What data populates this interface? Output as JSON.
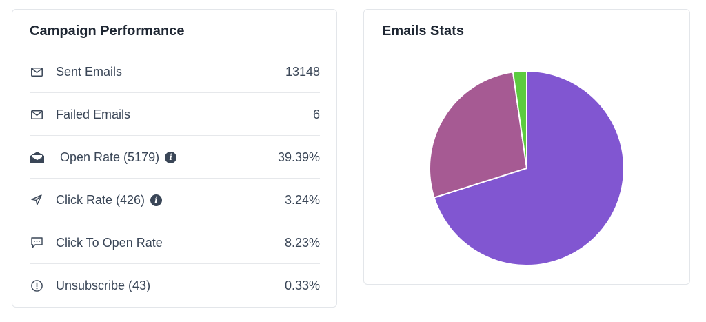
{
  "campaign": {
    "title": "Campaign Performance",
    "rows": [
      {
        "label": "Sent Emails",
        "value": "13148",
        "icon": "envelope-icon"
      },
      {
        "label": "Failed Emails",
        "value": "6",
        "icon": "envelope-icon"
      },
      {
        "label": "Open Rate (5179)",
        "value": "39.39%",
        "icon": "open-envelope-icon",
        "info_glyph": "i"
      },
      {
        "label": "Click Rate (426)",
        "value": "3.24%",
        "icon": "paper-plane-icon",
        "info_glyph": "i"
      },
      {
        "label": "Click To Open Rate",
        "value": "8.23%",
        "icon": "chat-bubble-icon"
      },
      {
        "label": "Unsubscribe (43)",
        "value": "0.33%",
        "icon": "alert-circle-icon"
      }
    ]
  },
  "stats": {
    "title": "Emails Stats"
  },
  "chart_data": {
    "type": "pie",
    "title": "Emails Stats",
    "series": [
      {
        "values": [
          13148,
          5179,
          426
        ],
        "colors": [
          "#8156d1",
          "#a65a93",
          "#5ccb3f"
        ]
      }
    ],
    "start_angle_deg": 0,
    "direction": "clockwise",
    "legend": "none"
  }
}
